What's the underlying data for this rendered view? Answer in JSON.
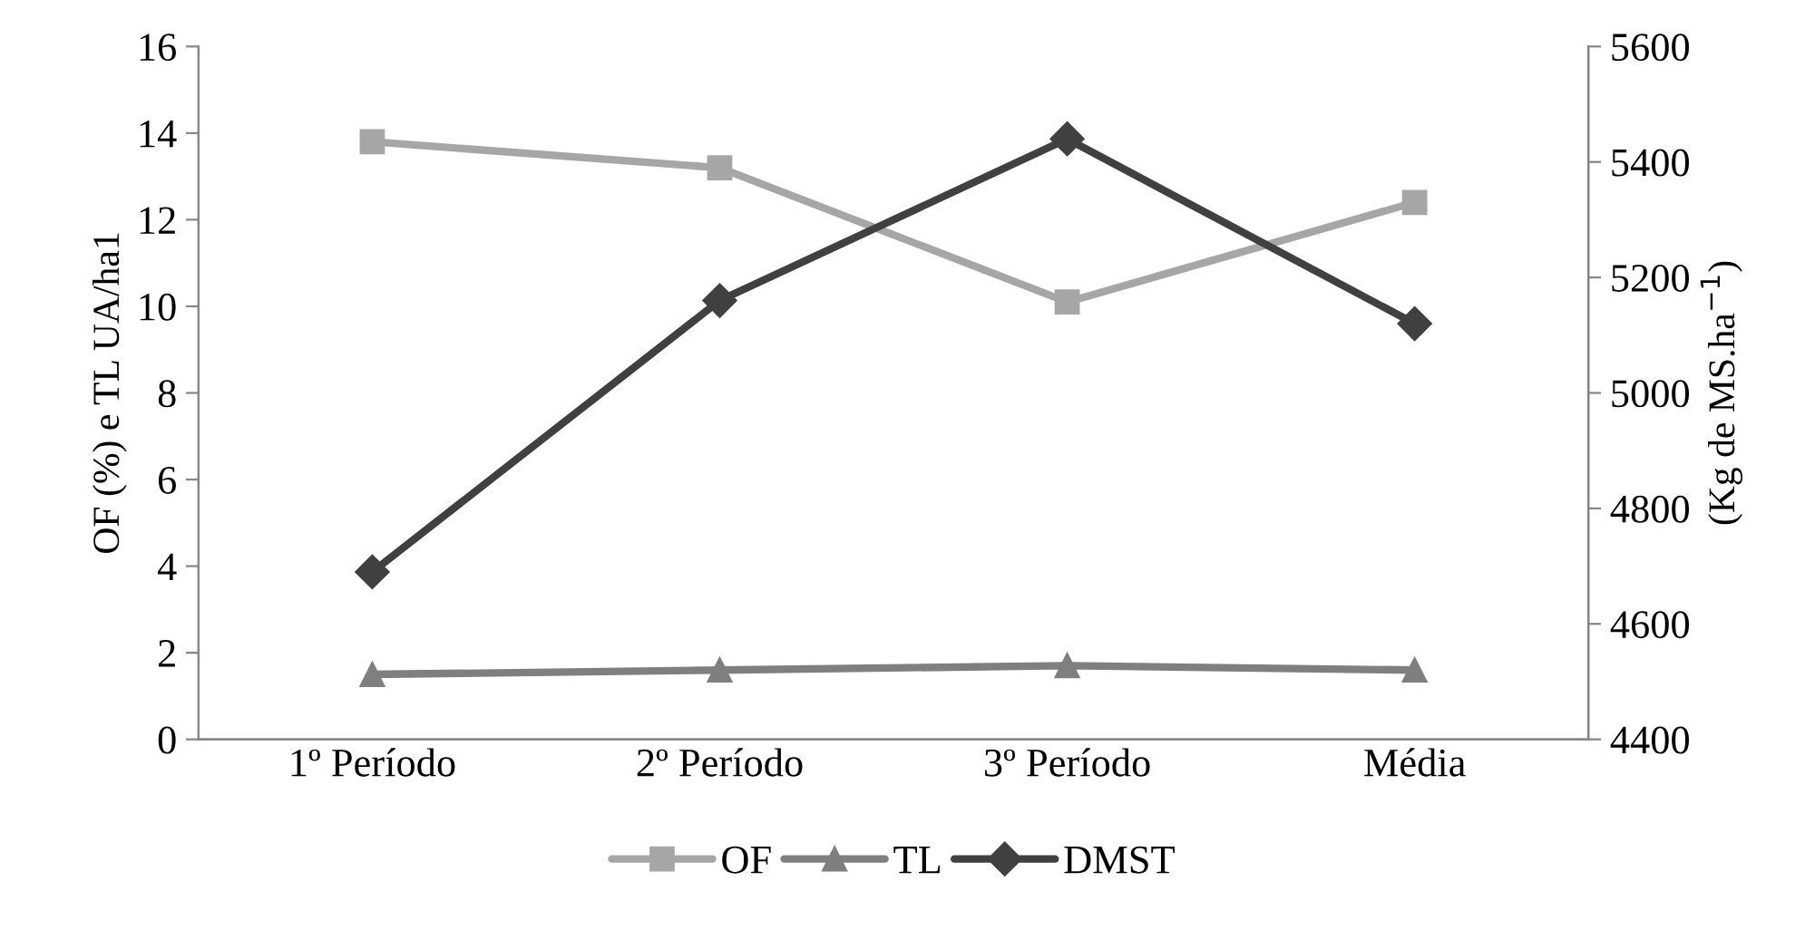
{
  "chart_data": {
    "type": "line",
    "categories": [
      "1º Período",
      "2º Período",
      "3º Período",
      "Média"
    ],
    "ylabel": "OF (%) e TL UA/ha1",
    "y2label": "(Kg de MS.ha$^{−1}$)",
    "ylim": [
      0,
      16
    ],
    "yticks": [
      0,
      2,
      4,
      6,
      8,
      10,
      12,
      14,
      16
    ],
    "y2lim": [
      4400,
      5600
    ],
    "y2ticks": [
      4400,
      4600,
      4800,
      5000,
      5200,
      5400,
      5600
    ],
    "series": [
      {
        "name": "OF",
        "color": "#a6a6a6",
        "marker": "square",
        "values": [
          13.8,
          13.2,
          10.1,
          12.4
        ]
      },
      {
        "name": "TL",
        "color": "#7f7f7f",
        "marker": "triangle",
        "values": [
          1.5,
          1.6,
          1.7,
          1.6
        ]
      },
      {
        "name": "DMST",
        "color": "#404040",
        "marker": "diamond",
        "axis": "y2",
        "values": [
          4690,
          5160,
          5440,
          5120
        ]
      }
    ],
    "grid": false,
    "legend": "bottom",
    "line_style": "solid"
  }
}
